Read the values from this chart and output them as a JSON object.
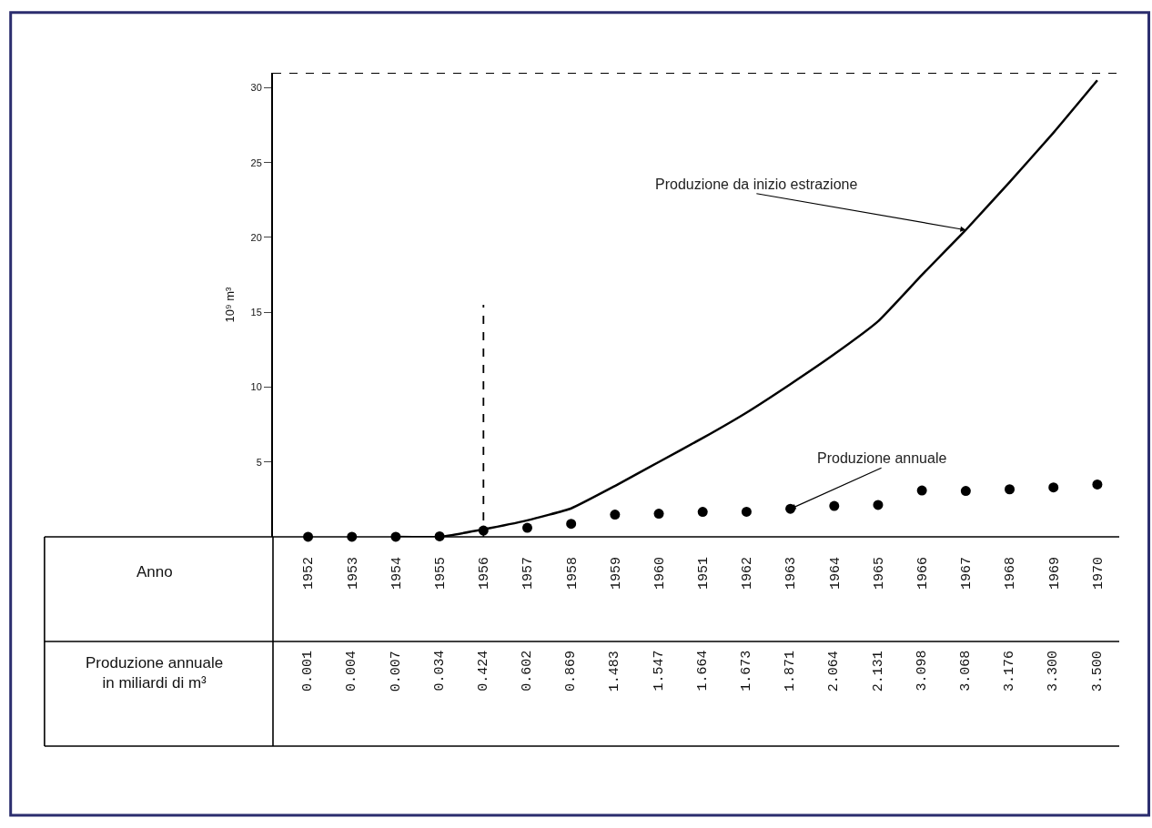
{
  "chart_data": {
    "type": "line",
    "ylabel": "10⁹ m³",
    "categories": [
      "1952",
      "1953",
      "1954",
      "1955",
      "1956",
      "1957",
      "1958",
      "1959",
      "1960",
      "1951",
      "1962",
      "1963",
      "1964",
      "1965",
      "1966",
      "1967",
      "1968",
      "1969",
      "1970"
    ],
    "series": [
      {
        "name": "Produzione da inizio estrazione",
        "color": "#000000",
        "marker": "none",
        "line_style": "solid",
        "values": [
          null,
          null,
          0.0,
          0.0,
          0.5,
          1.1,
          1.9,
          3.4,
          5.0,
          6.6,
          8.3,
          10.2,
          12.2,
          14.4,
          17.5,
          20.5,
          23.7,
          27.0,
          30.5
        ]
      },
      {
        "name": "Produzione annuale",
        "type": "scatter",
        "color": "#000000",
        "marker": "circle",
        "values": [
          0.001,
          0.004,
          0.007,
          0.034,
          0.424,
          0.602,
          0.869,
          1.483,
          1.547,
          1.664,
          1.673,
          1.871,
          2.064,
          2.131,
          3.098,
          3.068,
          3.176,
          3.3,
          3.5
        ],
        "value_labels": [
          "0.001",
          "0.004",
          "0.007",
          "0.034",
          "0.424",
          "0.602",
          "0.869",
          "1.483",
          "1.547",
          "1.664",
          "1.673",
          "1.871",
          "2.064",
          "2.131",
          "3.098",
          "3.068",
          "3.176",
          "3.300",
          "3.500"
        ]
      }
    ],
    "annotations": [
      "Anno",
      "Produzione annuale\nin miliardi di m³"
    ],
    "ylim": [
      0,
      31
    ],
    "yticks": [
      5,
      10,
      15,
      20,
      25,
      30
    ],
    "ref_lines": [
      {
        "axis": "y",
        "value": 31,
        "color": "#000000",
        "line_style": "dashed"
      },
      {
        "axis": "x",
        "value": "1956",
        "color": "#000000",
        "line_style": "dashed"
      }
    ],
    "legend": false
  }
}
